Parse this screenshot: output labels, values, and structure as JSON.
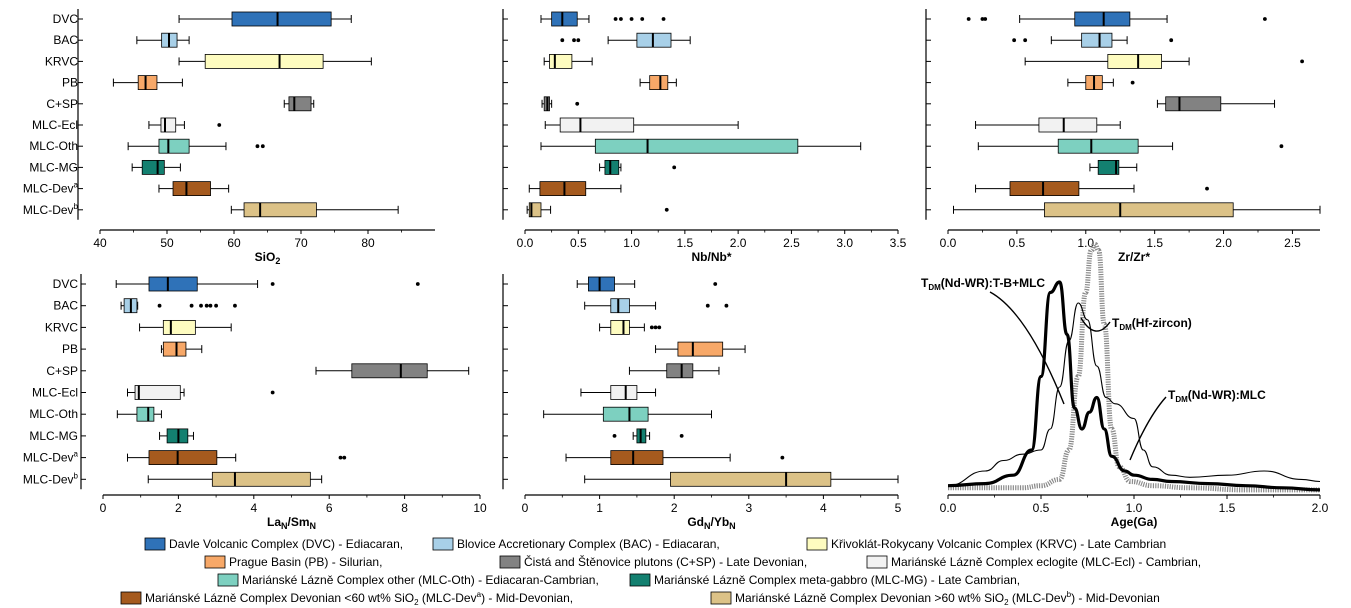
{
  "categories": [
    "DVC",
    "BAC",
    "KRVC",
    "PB",
    "C+SP",
    "MLC-Ecl",
    "MLC-Oth",
    "MLC-MG",
    "MLC-Dev",
    "MLC-Dev"
  ],
  "category_sup": [
    "",
    "",
    "",
    "",
    "",
    "",
    "",
    "",
    "a",
    "b"
  ],
  "colors": {
    "DVC": "#2f72b8",
    "BAC": "#a8d0e8",
    "KRVC": "#fefcc0",
    "PB": "#f7a868",
    "C+SP": "#828282",
    "MLC-Ecl": "#f2f2f2",
    "MLC-Oth": "#7dd0c0",
    "MLC-MG": "#138070",
    "MLC-Deva": "#a55a1e",
    "MLC-Devb": "#dcc287"
  },
  "chart_data": [
    {
      "type": "box",
      "xlabel": "SiO",
      "xlabel_sub": "2",
      "xlim": [
        40,
        90
      ],
      "xticks": [
        "40",
        "50",
        "60",
        "70",
        "80"
      ],
      "boxes": [
        {
          "w": [
            51.8,
            77.5
          ],
          "q": [
            59.7,
            66.5,
            74.5
          ],
          "out": []
        },
        {
          "w": [
            45.5,
            53.3
          ],
          "q": [
            49.2,
            50.3,
            51.5
          ],
          "out": []
        },
        {
          "w": [
            51.8,
            80.5
          ],
          "q": [
            55.7,
            66.8,
            73.3
          ],
          "out": []
        },
        {
          "w": [
            42.0,
            52.3
          ],
          "q": [
            45.7,
            46.8,
            48.5
          ],
          "out": []
        },
        {
          "w": [
            67.5,
            71.9
          ],
          "q": [
            68.2,
            69.0,
            71.5
          ],
          "out": []
        },
        {
          "w": [
            47.3,
            52.6
          ],
          "q": [
            49.1,
            49.7,
            51.3
          ],
          "out": [
            57.8
          ]
        },
        {
          "w": [
            44.2,
            58.8
          ],
          "q": [
            48.8,
            50.2,
            53.3
          ],
          "out": [
            63.5,
            64.3
          ]
        },
        {
          "w": [
            44.8,
            52.0
          ],
          "q": [
            46.3,
            48.6,
            49.6
          ],
          "out": []
        },
        {
          "w": [
            48.8,
            59.2
          ],
          "q": [
            50.9,
            52.9,
            56.5
          ],
          "out": []
        },
        {
          "w": [
            59.6,
            84.5
          ],
          "q": [
            61.5,
            63.9,
            72.3
          ],
          "out": []
        }
      ]
    },
    {
      "type": "box",
      "xlabel": "Nb/Nb*",
      "xlim": [
        0,
        3.5
      ],
      "xticks": [
        "0.0",
        "0.5",
        "1.0",
        "1.5",
        "2.0",
        "2.5",
        "3.0",
        "3.5"
      ],
      "boxes": [
        {
          "w": [
            0.15,
            0.6
          ],
          "q": [
            0.25,
            0.35,
            0.49
          ],
          "out": [
            0.85,
            0.9,
            1.0,
            1.1,
            1.3
          ]
        },
        {
          "w": [
            0.78,
            1.55
          ],
          "q": [
            1.05,
            1.2,
            1.37
          ],
          "out": [
            0.35,
            0.46,
            0.5
          ]
        },
        {
          "w": [
            0.18,
            0.63
          ],
          "q": [
            0.23,
            0.28,
            0.44
          ],
          "out": []
        },
        {
          "w": [
            1.08,
            1.42
          ],
          "q": [
            1.17,
            1.27,
            1.34
          ],
          "out": []
        },
        {
          "w": [
            0.16,
            0.25
          ],
          "q": [
            0.18,
            0.21,
            0.23
          ],
          "out": [
            0.49
          ]
        },
        {
          "w": [
            0.19,
            2.0
          ],
          "q": [
            0.33,
            0.52,
            1.02
          ],
          "out": []
        },
        {
          "w": [
            0.15,
            3.15
          ],
          "q": [
            0.66,
            1.15,
            2.56
          ],
          "out": []
        },
        {
          "w": [
            0.7,
            0.9
          ],
          "q": [
            0.75,
            0.8,
            0.88
          ],
          "out": [
            1.4
          ]
        },
        {
          "w": [
            0.04,
            0.9
          ],
          "q": [
            0.14,
            0.37,
            0.57
          ],
          "out": []
        },
        {
          "w": [
            0.02,
            0.24
          ],
          "q": [
            0.04,
            0.06,
            0.15
          ],
          "out": [
            1.33
          ]
        }
      ]
    },
    {
      "type": "box",
      "xlabel": "Zr/Zr*",
      "xlim": [
        0,
        2.7
      ],
      "xticks": [
        "0.0",
        "0.5",
        "1.0",
        "1.5",
        "2.0",
        "2.5"
      ],
      "boxes": [
        {
          "w": [
            0.52,
            1.59
          ],
          "q": [
            0.92,
            1.13,
            1.32
          ],
          "out": [
            0.15,
            0.25,
            0.27,
            2.3
          ]
        },
        {
          "w": [
            0.75,
            1.3
          ],
          "q": [
            0.97,
            1.1,
            1.19
          ],
          "out": [
            0.48,
            0.56,
            1.62
          ]
        },
        {
          "w": [
            0.56,
            1.75
          ],
          "q": [
            1.16,
            1.38,
            1.55
          ],
          "out": [
            2.57
          ]
        },
        {
          "w": [
            0.87,
            1.2
          ],
          "q": [
            1.0,
            1.06,
            1.12
          ],
          "out": [
            1.34
          ]
        },
        {
          "w": [
            1.52,
            2.37
          ],
          "q": [
            1.58,
            1.68,
            1.98
          ],
          "out": []
        },
        {
          "w": [
            0.2,
            1.25
          ],
          "q": [
            0.66,
            0.84,
            1.08
          ],
          "out": []
        },
        {
          "w": [
            0.22,
            1.63
          ],
          "q": [
            0.8,
            1.04,
            1.38
          ],
          "out": [
            2.42
          ]
        },
        {
          "w": [
            1.03,
            1.37
          ],
          "q": [
            1.09,
            1.22,
            1.24
          ],
          "out": []
        },
        {
          "w": [
            0.2,
            1.35
          ],
          "q": [
            0.45,
            0.69,
            0.95
          ],
          "out": [
            1.88
          ]
        },
        {
          "w": [
            0.04,
            2.7
          ],
          "q": [
            0.7,
            1.25,
            2.07
          ],
          "out": []
        }
      ]
    },
    {
      "type": "box",
      "xlabel": "La",
      "xlabel_sub": "N",
      "xlabel_mid": "/Sm",
      "xlabel_sub2": "N",
      "xlim": [
        0,
        10
      ],
      "xticks": [
        "0",
        "2",
        "4",
        "6",
        "8",
        "10"
      ],
      "boxes": [
        {
          "w": [
            0.35,
            4.1
          ],
          "q": [
            1.22,
            1.72,
            2.5
          ],
          "out": [
            4.5,
            8.35
          ]
        },
        {
          "w": [
            0.48,
            0.92
          ],
          "q": [
            0.56,
            0.74,
            0.9
          ],
          "out": [
            1.5,
            2.35,
            2.6,
            2.75,
            2.85,
            3.0,
            3.5
          ]
        },
        {
          "w": [
            0.97,
            3.4
          ],
          "q": [
            1.6,
            1.8,
            2.45
          ],
          "out": []
        },
        {
          "w": [
            1.55,
            2.62
          ],
          "q": [
            1.6,
            1.95,
            2.2
          ],
          "out": []
        },
        {
          "w": [
            5.65,
            9.7
          ],
          "q": [
            6.6,
            7.9,
            8.6
          ],
          "out": []
        },
        {
          "w": [
            0.65,
            2.15
          ],
          "q": [
            0.85,
            0.95,
            2.05
          ],
          "out": [
            4.5
          ]
        },
        {
          "w": [
            0.38,
            1.55
          ],
          "q": [
            0.9,
            1.2,
            1.35
          ],
          "out": []
        },
        {
          "w": [
            1.5,
            2.4
          ],
          "q": [
            1.7,
            2.0,
            2.25
          ],
          "out": []
        },
        {
          "w": [
            0.65,
            3.52
          ],
          "q": [
            1.22,
            1.98,
            3.02
          ],
          "out": [
            6.3,
            6.4
          ]
        },
        {
          "w": [
            1.2,
            5.8
          ],
          "q": [
            2.9,
            3.5,
            5.5
          ],
          "out": []
        }
      ]
    },
    {
      "type": "box",
      "xlabel": "Gd",
      "xlabel_sub": "N",
      "xlabel_mid": "/Yb",
      "xlabel_sub2": "N",
      "xlim": [
        0,
        5
      ],
      "xticks": [
        "0",
        "1",
        "2",
        "3",
        "4",
        "5"
      ],
      "boxes": [
        {
          "w": [
            0.7,
            1.47
          ],
          "q": [
            0.85,
            1.0,
            1.2
          ],
          "out": [
            2.55
          ]
        },
        {
          "w": [
            0.8,
            1.75
          ],
          "q": [
            1.15,
            1.25,
            1.4
          ],
          "out": [
            2.45,
            2.7
          ]
        },
        {
          "w": [
            1.0,
            1.6
          ],
          "q": [
            1.15,
            1.32,
            1.4
          ],
          "out": [
            1.7,
            1.75,
            1.8
          ]
        },
        {
          "w": [
            1.75,
            2.95
          ],
          "q": [
            2.05,
            2.25,
            2.65
          ],
          "out": []
        },
        {
          "w": [
            1.4,
            2.6
          ],
          "q": [
            1.9,
            2.1,
            2.25
          ],
          "out": []
        },
        {
          "w": [
            0.75,
            1.75
          ],
          "q": [
            1.15,
            1.35,
            1.5
          ],
          "out": []
        },
        {
          "w": [
            0.25,
            2.5
          ],
          "q": [
            1.05,
            1.4,
            1.65
          ],
          "out": []
        },
        {
          "w": [
            1.45,
            1.67
          ],
          "q": [
            1.5,
            1.55,
            1.62
          ],
          "out": [
            1.2,
            2.1
          ]
        },
        {
          "w": [
            0.55,
            2.75
          ],
          "q": [
            1.15,
            1.45,
            1.85
          ],
          "out": [
            3.45
          ]
        },
        {
          "w": [
            0.8,
            5.0
          ],
          "q": [
            1.95,
            3.5,
            4.1
          ],
          "out": []
        }
      ]
    },
    {
      "type": "line",
      "xlabel": "Age(Ga)",
      "xlim": [
        0,
        2
      ],
      "xticks": [
        "0.0",
        "0.5",
        "1.0",
        "1.5",
        "2.0"
      ],
      "series": [
        {
          "name": "T_DM(Nd-WR):T-B+MLC",
          "x": [
            0,
            0.2,
            0.35,
            0.45,
            0.5,
            0.55,
            0.6,
            0.64,
            0.68,
            0.72,
            0.76,
            0.8,
            0.84,
            0.88,
            0.95,
            1.0,
            1.1,
            1.2,
            1.4,
            1.6,
            1.8,
            2.0
          ],
          "y": [
            0.03,
            0.04,
            0.08,
            0.2,
            0.55,
            0.95,
            1.0,
            0.75,
            0.4,
            0.3,
            0.38,
            0.45,
            0.3,
            0.17,
            0.1,
            0.08,
            0.06,
            0.05,
            0.04,
            0.03,
            0.02,
            0.01
          ]
        },
        {
          "name": "T_DM(Hf-zircon)",
          "x": [
            0,
            0.4,
            0.5,
            0.6,
            0.65,
            0.7,
            0.74,
            0.77,
            0.79,
            0.81,
            0.84,
            0.88,
            0.92,
            0.98,
            1.1,
            1.3,
            1.6,
            2.0
          ],
          "y": [
            0.02,
            0.02,
            0.03,
            0.06,
            0.2,
            0.55,
            0.95,
            1.15,
            1.18,
            1.15,
            0.8,
            0.3,
            0.12,
            0.05,
            0.03,
            0.02,
            0.01,
            0.01
          ]
        },
        {
          "name": "T_DM(Nd-WR):MLC",
          "x": [
            0,
            0.2,
            0.3,
            0.4,
            0.5,
            0.55,
            0.6,
            0.65,
            0.7,
            0.75,
            0.8,
            0.85,
            0.9,
            1.0,
            1.05,
            1.1,
            1.2,
            1.3,
            1.5,
            1.7,
            1.9,
            2.0
          ],
          "y": [
            0.03,
            0.1,
            0.15,
            0.18,
            0.2,
            0.3,
            0.5,
            0.72,
            0.9,
            0.82,
            0.6,
            0.45,
            0.42,
            0.35,
            0.2,
            0.12,
            0.08,
            0.07,
            0.08,
            0.1,
            0.06,
            0.05
          ]
        }
      ],
      "labels": {
        "a": {
          "p": "T",
          "sub": "DM",
          "rest": "(Nd-WR):T-B+MLC"
        },
        "b": {
          "p": "T",
          "sub": "DM",
          "rest": "(Hf-zircon)"
        },
        "c": {
          "p": "T",
          "sub": "DM",
          "rest": "(Nd-WR):MLC"
        }
      }
    }
  ],
  "legend": [
    {
      "key": "DVC",
      "text": "Davle Volcanic Complex (DVC) - Ediacaran,"
    },
    {
      "key": "BAC",
      "text": "Blovice Accretionary Complex (BAC) - Ediacaran,"
    },
    {
      "key": "KRVC",
      "text": "Křivoklát-Rokycany Volcanic Complex (KRVC) - Late Cambrian"
    },
    {
      "key": "PB",
      "text": "Prague Basin (PB) - Silurian,"
    },
    {
      "key": "C+SP",
      "text": "Čistá and Štěnovice plutons (C+SP) - Late Devonian,"
    },
    {
      "key": "MLC-Ecl",
      "text": "Mariánské Lázně Complex eclogite (MLC-Ecl) - Cambrian,"
    },
    {
      "key": "MLC-Oth",
      "text": "Mariánské Lázně Complex other (MLC-Oth) - Ediacaran-Cambrian,"
    },
    {
      "key": "MLC-MG",
      "text": "Mariánské Lázně Complex meta-gabbro (MLC-MG) - Late Cambrian,"
    },
    {
      "key": "MLC-Deva",
      "text": "Mariánské Lázně Complex Devonian <60 wt% SiO",
      "sub": "2",
      "text2": " (MLC-Dev",
      "sup": "a",
      "text3": ") - Mid-Devonian,"
    },
    {
      "key": "MLC-Devb",
      "text": "Mariánské Lázně Complex Devonian >60 wt% SiO",
      "sub": "2",
      "text2": " (MLC-Dev",
      "sup": "b",
      "text3": ") - Mid-Devonian"
    }
  ]
}
